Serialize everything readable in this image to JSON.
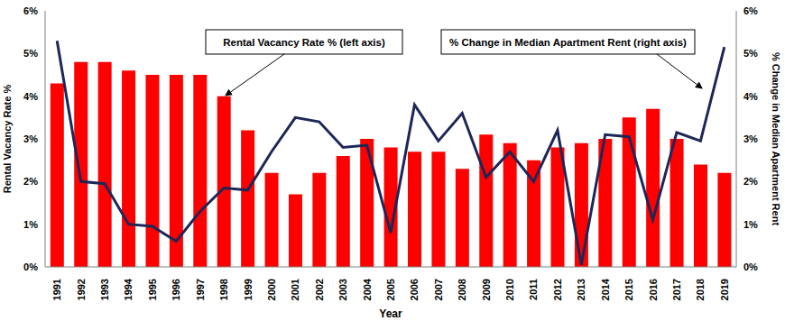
{
  "chart_data": {
    "type": "bar",
    "x_label": "Year",
    "y_label": "Rental Vacancy Rate %",
    "y2_label": "% Change in Median Apartment Rent",
    "categories": [
      "1991",
      "1992",
      "1993",
      "1994",
      "1995",
      "1996",
      "1997",
      "1998",
      "1999",
      "2000",
      "2001",
      "2002",
      "2003",
      "2004",
      "2005",
      "2006",
      "2007",
      "2008",
      "2009",
      "2010",
      "2011",
      "2012",
      "2013",
      "2014",
      "2015",
      "2016",
      "2017",
      "2018",
      "2019"
    ],
    "series": [
      {
        "name": "Rental Vacancy Rate % (left axis)",
        "type": "bar",
        "color": "#ff0000",
        "values": [
          4.3,
          4.8,
          4.8,
          4.6,
          4.5,
          4.5,
          4.5,
          4.0,
          3.2,
          2.2,
          1.7,
          2.2,
          2.6,
          3.0,
          2.8,
          2.7,
          2.7,
          2.3,
          3.1,
          2.9,
          2.5,
          2.8,
          2.9,
          3.0,
          3.5,
          3.7,
          3.0,
          2.4,
          2.2
        ]
      },
      {
        "name": "% Change in Median Apartment Rent (right axis)",
        "type": "line",
        "color": "#1c2757",
        "axis": "y2",
        "values": [
          5.3,
          2.0,
          1.95,
          1.0,
          0.95,
          0.6,
          1.3,
          1.85,
          1.8,
          2.7,
          3.5,
          3.4,
          2.8,
          2.85,
          0.8,
          3.8,
          2.95,
          3.6,
          2.1,
          2.7,
          2.0,
          3.2,
          0.05,
          3.1,
          3.05,
          1.1,
          3.15,
          2.95,
          5.15
        ]
      }
    ],
    "ylim": [
      0,
      6
    ],
    "yticks": [
      {
        "value": 0,
        "label": "0%"
      },
      {
        "value": 1,
        "label": "1%"
      },
      {
        "value": 2,
        "label": "2%"
      },
      {
        "value": 3,
        "label": "3%"
      },
      {
        "value": 4,
        "label": "4%"
      },
      {
        "value": 5,
        "label": "5%"
      },
      {
        "value": 6,
        "label": "6%"
      }
    ],
    "y2lim": [
      0,
      6
    ],
    "y2ticks": [
      {
        "value": 0,
        "label": "0%"
      },
      {
        "value": 1,
        "label": "1%"
      },
      {
        "value": 2,
        "label": "2%"
      },
      {
        "value": 3,
        "label": "3%"
      },
      {
        "value": 4,
        "label": "4%"
      },
      {
        "value": 5,
        "label": "5%"
      },
      {
        "value": 6,
        "label": "6%"
      }
    ],
    "grid": false
  }
}
